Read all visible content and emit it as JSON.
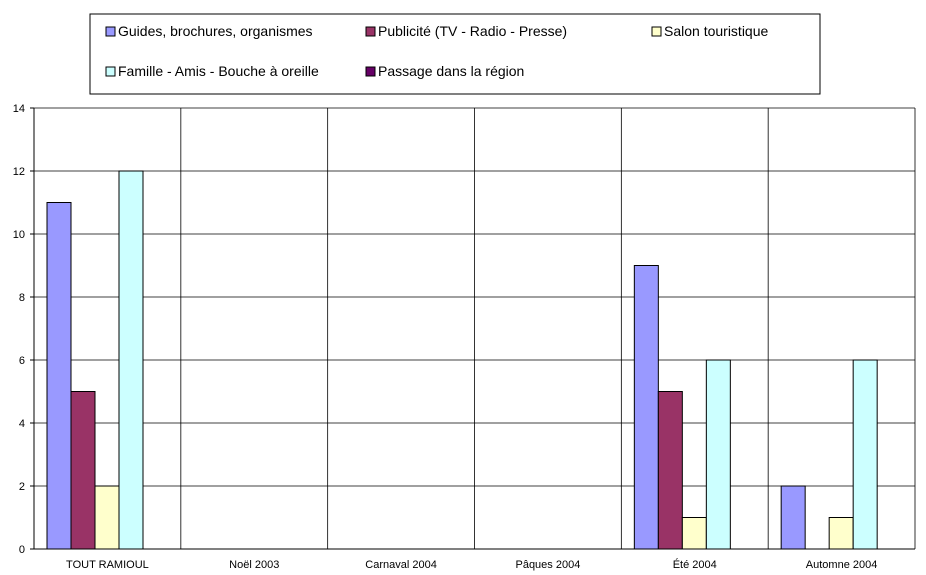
{
  "chart_data": {
    "type": "bar",
    "title": "",
    "xlabel": "",
    "ylabel": "",
    "ylim": [
      0,
      14
    ],
    "y_ticks": [
      0,
      2,
      4,
      6,
      8,
      10,
      12,
      14
    ],
    "grid": true,
    "legend_position": "top",
    "categories": [
      "TOUT RAMIOUL",
      "Noël 2003",
      "Carnaval 2004",
      "Pâques 2004",
      "Été 2004",
      "Automne 2004"
    ],
    "series": [
      {
        "name": "Guides, brochures, organismes",
        "color": "#9999FF",
        "values": [
          11,
          0,
          0,
          0,
          9,
          2
        ]
      },
      {
        "name": "Publicité (TV - Radio - Presse)",
        "color": "#993366",
        "values": [
          5,
          0,
          0,
          0,
          5,
          0
        ]
      },
      {
        "name": "Salon touristique",
        "color": "#FFFFCC",
        "values": [
          2,
          0,
          0,
          0,
          1,
          1
        ]
      },
      {
        "name": "Famille - Amis - Bouche à oreille",
        "color": "#CCFFFF",
        "values": [
          12,
          0,
          0,
          0,
          6,
          6
        ]
      },
      {
        "name": "Passage dans la région",
        "color": "#660066",
        "values": [
          0,
          0,
          0,
          0,
          0,
          0
        ]
      }
    ]
  }
}
